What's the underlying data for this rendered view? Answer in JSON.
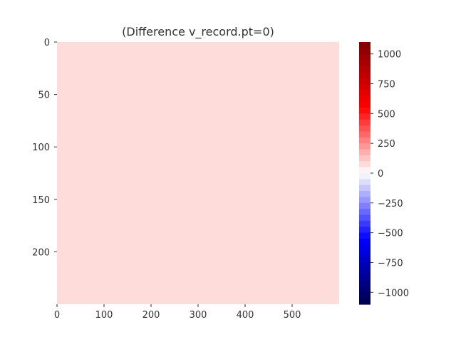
{
  "chart_data": {
    "type": "heatmap",
    "title": "(Difference v_record.pt=0)",
    "xlabel": "",
    "ylabel": "",
    "x_ticks": [
      "0",
      "100",
      "200",
      "300",
      "400",
      "500"
    ],
    "x_tick_values": [
      0,
      100,
      200,
      300,
      400,
      500
    ],
    "xlim": [
      0,
      600
    ],
    "y_ticks": [
      "0",
      "50",
      "100",
      "150",
      "200"
    ],
    "y_tick_values": [
      0,
      50,
      100,
      150,
      200
    ],
    "ylim": [
      250,
      0
    ],
    "values": [
      [
        100
      ]
    ],
    "fill_color": "#fddcd9",
    "colorbar": {
      "colormap": "seismic",
      "vmin": -1100,
      "vmax": 1100,
      "ticks": [
        "1000",
        "750",
        "500",
        "250",
        "0",
        "−250",
        "−500",
        "−750",
        "−1000"
      ],
      "tick_values": [
        1000,
        750,
        500,
        250,
        0,
        -250,
        -500,
        -750,
        -1000
      ],
      "stops": [
        {
          "v": -1100,
          "color": "#00004c"
        },
        {
          "v": -550,
          "color": "#0000ff"
        },
        {
          "v": 0,
          "color": "#ffffff"
        },
        {
          "v": 550,
          "color": "#ff0000"
        },
        {
          "v": 1100,
          "color": "#800000"
        }
      ]
    },
    "grid": false,
    "legend": "none"
  }
}
